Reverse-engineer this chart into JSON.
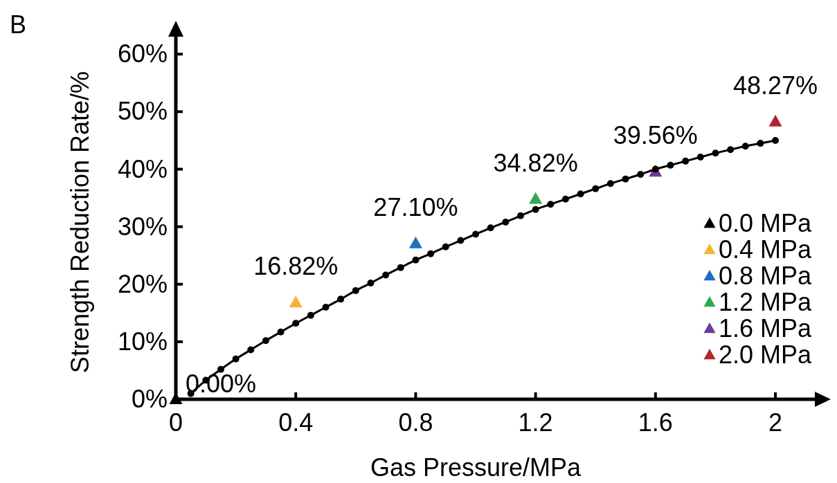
{
  "chart_data": {
    "type": "line",
    "xlabel": "Gas Pressure/MPa",
    "ylabel": "Strength Reduction Rate/%",
    "annotations": [
      "B"
    ],
    "xlim": [
      0,
      2.15
    ],
    "xticks": [
      0,
      0.4,
      0.8,
      1.2,
      1.6,
      2
    ],
    "ylim": [
      0,
      64
    ],
    "yticks": [
      {
        "value": 0,
        "label": "0%"
      },
      {
        "value": 10,
        "label": "10%"
      },
      {
        "value": 20,
        "label": "20%"
      },
      {
        "value": 30,
        "label": "30%"
      },
      {
        "value": 40,
        "label": "40%"
      },
      {
        "value": 50,
        "label": "50%"
      },
      {
        "value": 60,
        "label": "60%"
      }
    ],
    "grid": false,
    "legend": "right",
    "series": [
      {
        "marker": "circle",
        "color": "#000000",
        "x": [
          0.05,
          0.1,
          0.15,
          0.2,
          0.25,
          0.3,
          0.35,
          0.4,
          0.45,
          0.5,
          0.55,
          0.6,
          0.65,
          0.7,
          0.75,
          0.8,
          0.85,
          0.9,
          0.95,
          1.0,
          1.05,
          1.1,
          1.15,
          1.2,
          1.25,
          1.3,
          1.35,
          1.4,
          1.45,
          1.5,
          1.55,
          1.6,
          1.65,
          1.7,
          1.75,
          1.8,
          1.85,
          1.9,
          1.95,
          2.0
        ],
        "values": [
          1.0,
          3.3,
          5.2,
          7.0,
          8.6,
          10.2,
          11.7,
          13.2,
          14.6,
          16.0,
          17.4,
          18.9,
          20.2,
          21.6,
          22.9,
          24.2,
          25.3,
          26.5,
          27.6,
          28.7,
          29.8,
          30.8,
          31.9,
          33.0,
          33.9,
          34.8,
          35.7,
          36.6,
          37.5,
          38.3,
          39.1,
          40.0,
          40.7,
          41.4,
          42.1,
          42.8,
          43.4,
          44.0,
          44.5,
          45.0
        ]
      },
      {
        "type": "scatter",
        "marker": "triangle",
        "name": "0.0 MPa",
        "color": "#000000",
        "x": [
          0
        ],
        "values": [
          0
        ],
        "value_labels": [
          "0.00%"
        ]
      },
      {
        "type": "scatter",
        "marker": "triangle",
        "name": "0.4 MPa",
        "color": "#f5b335",
        "x": [
          0.4
        ],
        "values": [
          16.82
        ],
        "value_labels": [
          "16.82%"
        ]
      },
      {
        "type": "scatter",
        "marker": "triangle",
        "name": "0.8 MPa",
        "color": "#1f6fbf",
        "x": [
          0.8
        ],
        "values": [
          27.1
        ],
        "value_labels": [
          "27.10%"
        ]
      },
      {
        "type": "scatter",
        "marker": "triangle",
        "name": "1.2 MPa",
        "color": "#33a852",
        "x": [
          1.2
        ],
        "values": [
          34.82
        ],
        "value_labels": [
          "34.82%"
        ]
      },
      {
        "type": "scatter",
        "marker": "triangle",
        "name": "1.6 MPa",
        "color": "#6a3d9a",
        "x": [
          1.6
        ],
        "values": [
          39.56
        ],
        "value_labels": [
          "39.56%"
        ]
      },
      {
        "type": "scatter",
        "marker": "triangle",
        "name": "2.0 MPa",
        "color": "#b0262e",
        "x": [
          2.0
        ],
        "values": [
          48.27
        ],
        "value_labels": [
          "48.27%"
        ]
      }
    ]
  }
}
